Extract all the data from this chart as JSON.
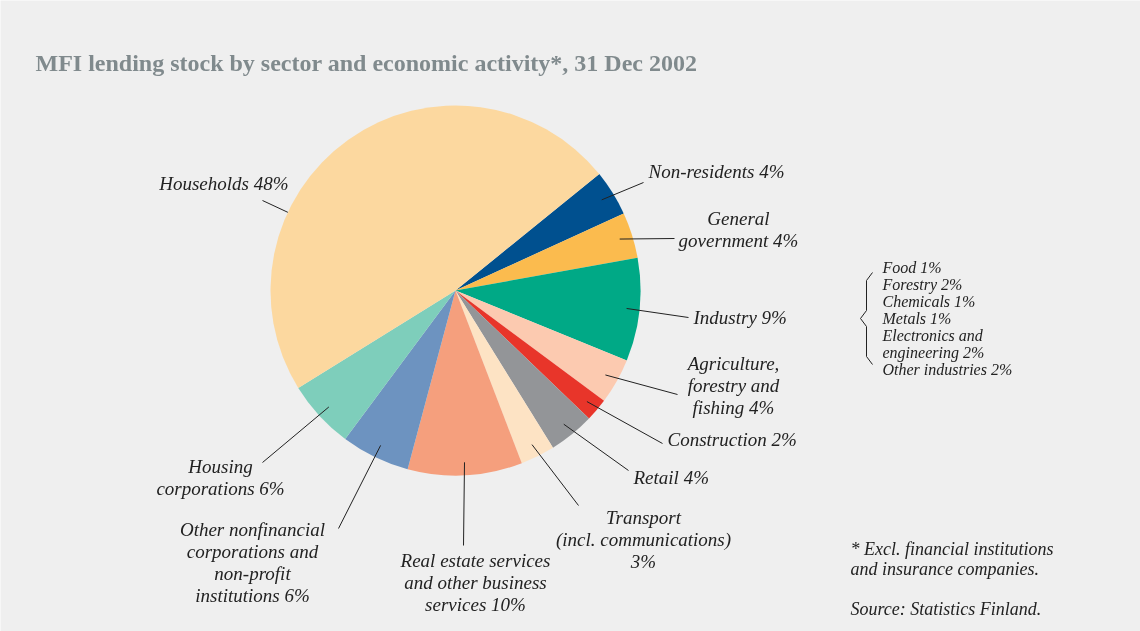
{
  "chart_data": {
    "type": "pie",
    "title": "MFI lending stock by sector and economic activity*, 31 Dec 2002",
    "categories": [
      "Non-residents 4%",
      "General\ngovernment 4%",
      "Industry 9%",
      "Agriculture,\nforestry and\nfishing 4%",
      "Construction 2%",
      "Retail 4%",
      "Transport\n(incl. communications)\n3%",
      "Real estate services\nand other business\nservices 10%",
      "Other nonfinancial\ncorporations and\nnon-profit\ninstitutions 6%",
      "Housing\ncorporations 6%",
      "Households 48%"
    ],
    "values": [
      4,
      4,
      9,
      4,
      2,
      4,
      3,
      10,
      6,
      6,
      48
    ],
    "colors": [
      "#00508f",
      "#fbbb4e",
      "#00a986",
      "#fccab0",
      "#e8352a",
      "#939598",
      "#fde3c4",
      "#f59f7d",
      "#6d93c0",
      "#7ecebb",
      "#fcd89f"
    ],
    "annotations": [
      "Food 1%\nForestry 2%\nChemicals 1%\nMetals 1%\nElectronics and\nengineering 2%\nOther industries 2%",
      "* Excl. financial institutions\n   and insurance companies.",
      "Source: Statistics Finland."
    ],
    "legend": false
  }
}
